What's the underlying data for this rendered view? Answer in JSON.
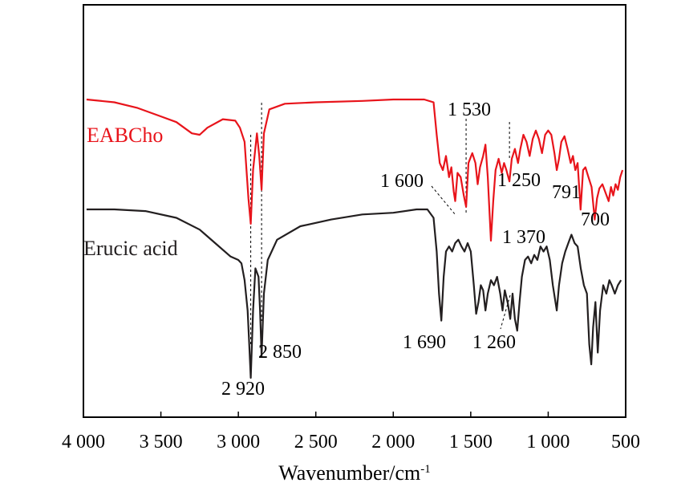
{
  "chart_data": {
    "type": "line",
    "xlabel_base": "Wavenumber/cm",
    "xlabel_sup": "-1",
    "x_reversed": true,
    "xlim": [
      4000,
      500
    ],
    "x_ticks": [
      4000,
      3500,
      3000,
      2500,
      2000,
      1500,
      1000,
      500
    ],
    "x_tick_labels": [
      "4 000",
      "3 500",
      "3 000",
      "2 500",
      "2 000",
      "1 500",
      "1 000",
      "500"
    ],
    "y_ticks_shown": false,
    "grid": false,
    "series": [
      {
        "name": "EABCho",
        "color": "#e8141b",
        "points": [
          [
            3980,
            0.0
          ],
          [
            3800,
            0.02
          ],
          [
            3650,
            0.06
          ],
          [
            3500,
            0.12
          ],
          [
            3400,
            0.16
          ],
          [
            3300,
            0.24
          ],
          [
            3250,
            0.25
          ],
          [
            3200,
            0.2
          ],
          [
            3100,
            0.14
          ],
          [
            3020,
            0.15
          ],
          [
            2990,
            0.2
          ],
          [
            2960,
            0.3
          ],
          [
            2935,
            0.7
          ],
          [
            2920,
            0.88
          ],
          [
            2905,
            0.5
          ],
          [
            2880,
            0.24
          ],
          [
            2865,
            0.4
          ],
          [
            2850,
            0.64
          ],
          [
            2835,
            0.24
          ],
          [
            2800,
            0.07
          ],
          [
            2700,
            0.03
          ],
          [
            2500,
            0.02
          ],
          [
            2200,
            0.01
          ],
          [
            2000,
            0.0
          ],
          [
            1800,
            0.0
          ],
          [
            1740,
            0.02
          ],
          [
            1720,
            0.25
          ],
          [
            1700,
            0.45
          ],
          [
            1680,
            0.5
          ],
          [
            1660,
            0.4
          ],
          [
            1640,
            0.55
          ],
          [
            1625,
            0.48
          ],
          [
            1610,
            0.65
          ],
          [
            1600,
            0.72
          ],
          [
            1585,
            0.52
          ],
          [
            1565,
            0.55
          ],
          [
            1545,
            0.68
          ],
          [
            1530,
            0.76
          ],
          [
            1515,
            0.45
          ],
          [
            1490,
            0.38
          ],
          [
            1470,
            0.45
          ],
          [
            1455,
            0.6
          ],
          [
            1440,
            0.48
          ],
          [
            1420,
            0.4
          ],
          [
            1405,
            0.32
          ],
          [
            1390,
            0.55
          ],
          [
            1370,
            1.0
          ],
          [
            1355,
            0.72
          ],
          [
            1340,
            0.5
          ],
          [
            1320,
            0.42
          ],
          [
            1300,
            0.52
          ],
          [
            1285,
            0.45
          ],
          [
            1270,
            0.5
          ],
          [
            1250,
            0.58
          ],
          [
            1235,
            0.42
          ],
          [
            1215,
            0.35
          ],
          [
            1195,
            0.45
          ],
          [
            1180,
            0.35
          ],
          [
            1160,
            0.25
          ],
          [
            1140,
            0.3
          ],
          [
            1120,
            0.4
          ],
          [
            1100,
            0.28
          ],
          [
            1080,
            0.22
          ],
          [
            1060,
            0.28
          ],
          [
            1040,
            0.38
          ],
          [
            1020,
            0.25
          ],
          [
            1000,
            0.22
          ],
          [
            980,
            0.25
          ],
          [
            960,
            0.38
          ],
          [
            945,
            0.5
          ],
          [
            930,
            0.42
          ],
          [
            915,
            0.3
          ],
          [
            895,
            0.26
          ],
          [
            875,
            0.35
          ],
          [
            855,
            0.45
          ],
          [
            840,
            0.4
          ],
          [
            825,
            0.5
          ],
          [
            810,
            0.45
          ],
          [
            791,
            0.78
          ],
          [
            775,
            0.5
          ],
          [
            760,
            0.48
          ],
          [
            740,
            0.55
          ],
          [
            720,
            0.62
          ],
          [
            700,
            0.85
          ],
          [
            685,
            0.7
          ],
          [
            670,
            0.63
          ],
          [
            650,
            0.6
          ],
          [
            630,
            0.66
          ],
          [
            610,
            0.72
          ],
          [
            595,
            0.62
          ],
          [
            580,
            0.68
          ],
          [
            565,
            0.6
          ],
          [
            550,
            0.64
          ],
          [
            535,
            0.55
          ],
          [
            520,
            0.5
          ]
        ]
      },
      {
        "name": "Erucic acid",
        "color": "#231f20",
        "points": [
          [
            3980,
            0.0
          ],
          [
            3800,
            0.0
          ],
          [
            3600,
            0.01
          ],
          [
            3400,
            0.05
          ],
          [
            3250,
            0.12
          ],
          [
            3150,
            0.2
          ],
          [
            3050,
            0.28
          ],
          [
            3000,
            0.3
          ],
          [
            2980,
            0.32
          ],
          [
            2960,
            0.42
          ],
          [
            2940,
            0.6
          ],
          [
            2930,
            0.8
          ],
          [
            2920,
            1.0
          ],
          [
            2905,
            0.6
          ],
          [
            2890,
            0.35
          ],
          [
            2870,
            0.4
          ],
          [
            2860,
            0.6
          ],
          [
            2850,
            0.87
          ],
          [
            2835,
            0.5
          ],
          [
            2810,
            0.3
          ],
          [
            2750,
            0.18
          ],
          [
            2600,
            0.1
          ],
          [
            2400,
            0.06
          ],
          [
            2200,
            0.03
          ],
          [
            2000,
            0.02
          ],
          [
            1850,
            0.0
          ],
          [
            1780,
            0.0
          ],
          [
            1740,
            0.05
          ],
          [
            1720,
            0.25
          ],
          [
            1705,
            0.5
          ],
          [
            1690,
            0.66
          ],
          [
            1675,
            0.4
          ],
          [
            1660,
            0.25
          ],
          [
            1640,
            0.22
          ],
          [
            1620,
            0.25
          ],
          [
            1600,
            0.2
          ],
          [
            1580,
            0.18
          ],
          [
            1560,
            0.22
          ],
          [
            1540,
            0.25
          ],
          [
            1520,
            0.2
          ],
          [
            1500,
            0.25
          ],
          [
            1480,
            0.45
          ],
          [
            1465,
            0.62
          ],
          [
            1450,
            0.55
          ],
          [
            1435,
            0.45
          ],
          [
            1420,
            0.48
          ],
          [
            1405,
            0.6
          ],
          [
            1390,
            0.5
          ],
          [
            1370,
            0.42
          ],
          [
            1350,
            0.45
          ],
          [
            1330,
            0.4
          ],
          [
            1310,
            0.5
          ],
          [
            1295,
            0.6
          ],
          [
            1280,
            0.48
          ],
          [
            1260,
            0.56
          ],
          [
            1245,
            0.65
          ],
          [
            1230,
            0.5
          ],
          [
            1215,
            0.65
          ],
          [
            1200,
            0.72
          ],
          [
            1185,
            0.55
          ],
          [
            1170,
            0.4
          ],
          [
            1150,
            0.3
          ],
          [
            1130,
            0.28
          ],
          [
            1110,
            0.32
          ],
          [
            1090,
            0.27
          ],
          [
            1070,
            0.3
          ],
          [
            1050,
            0.22
          ],
          [
            1030,
            0.25
          ],
          [
            1010,
            0.22
          ],
          [
            990,
            0.3
          ],
          [
            970,
            0.45
          ],
          [
            945,
            0.6
          ],
          [
            930,
            0.45
          ],
          [
            910,
            0.32
          ],
          [
            890,
            0.25
          ],
          [
            870,
            0.2
          ],
          [
            850,
            0.15
          ],
          [
            830,
            0.2
          ],
          [
            810,
            0.22
          ],
          [
            790,
            0.35
          ],
          [
            770,
            0.45
          ],
          [
            750,
            0.5
          ],
          [
            735,
            0.8
          ],
          [
            722,
            0.92
          ],
          [
            710,
            0.7
          ],
          [
            695,
            0.55
          ],
          [
            680,
            0.85
          ],
          [
            665,
            0.6
          ],
          [
            645,
            0.45
          ],
          [
            625,
            0.5
          ],
          [
            605,
            0.42
          ],
          [
            590,
            0.45
          ],
          [
            570,
            0.5
          ],
          [
            550,
            0.45
          ],
          [
            530,
            0.42
          ]
        ]
      }
    ],
    "annotations": [
      {
        "text": "1 530",
        "x": 1530
      },
      {
        "text": "1 600",
        "x": 1600
      },
      {
        "text": "1 250",
        "x": 1250
      },
      {
        "text": "791",
        "x": 791
      },
      {
        "text": "700",
        "x": 700
      },
      {
        "text": "1 370",
        "x": 1370
      },
      {
        "text": "1 690",
        "x": 1690
      },
      {
        "text": "1 260",
        "x": 1260
      },
      {
        "text": "2 850",
        "x": 2850
      },
      {
        "text": "2 920",
        "x": 2920
      }
    ]
  }
}
